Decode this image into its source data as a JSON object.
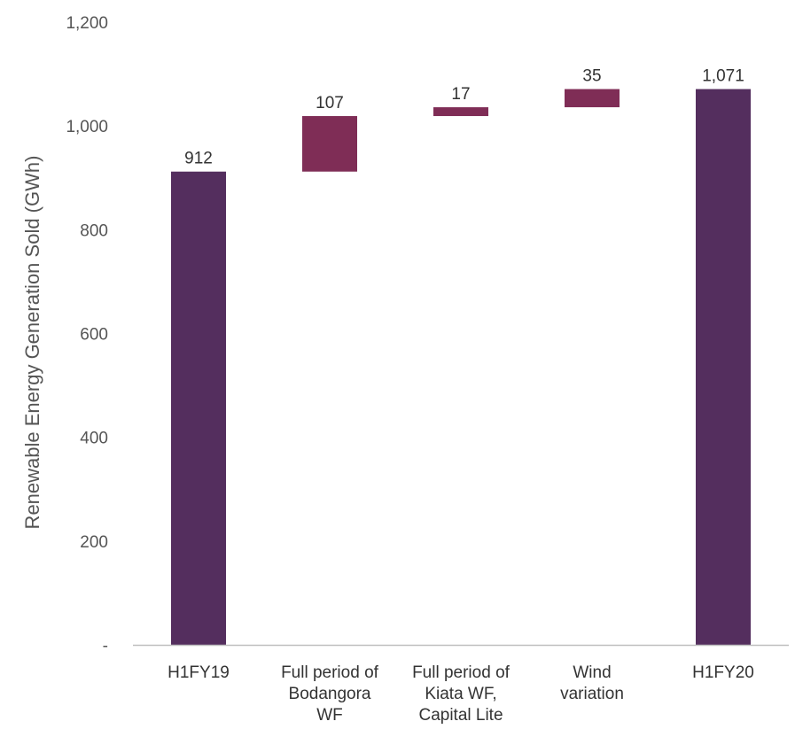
{
  "chart_data": {
    "type": "waterfall",
    "title": "",
    "ylabel": "Renewable Energy Generation Sold (GWh)",
    "xlabel": "",
    "ylim": [
      0,
      1200
    ],
    "yticks": [
      {
        "value": 0,
        "label": "-"
      },
      {
        "value": 200,
        "label": "200"
      },
      {
        "value": 400,
        "label": "400"
      },
      {
        "value": 600,
        "label": "600"
      },
      {
        "value": 800,
        "label": "800"
      },
      {
        "value": 1000,
        "label": "1,000"
      },
      {
        "value": 1200,
        "label": "1,200"
      }
    ],
    "grid": false,
    "bars": [
      {
        "category": [
          "H1FY19"
        ],
        "kind": "total",
        "value": 912,
        "label": "912",
        "color": "#542E5E"
      },
      {
        "category": [
          "Full period of",
          "Bodangora",
          "WF"
        ],
        "kind": "delta",
        "value": 107,
        "label": "107",
        "color": "#7F2D56"
      },
      {
        "category": [
          "Full period of",
          "Kiata WF,",
          "Capital Lite"
        ],
        "kind": "delta",
        "value": 17,
        "label": "17",
        "color": "#7F2D56"
      },
      {
        "category": [
          "Wind",
          "variation"
        ],
        "kind": "delta",
        "value": 35,
        "label": "35",
        "color": "#7F2D56"
      },
      {
        "category": [
          "H1FY20"
        ],
        "kind": "total",
        "value": 1071,
        "label": "1,071",
        "color": "#542E5E"
      }
    ],
    "colors": {
      "total": "#542E5E",
      "increase": "#7F2D56",
      "axis": "#BFBFBF"
    }
  }
}
